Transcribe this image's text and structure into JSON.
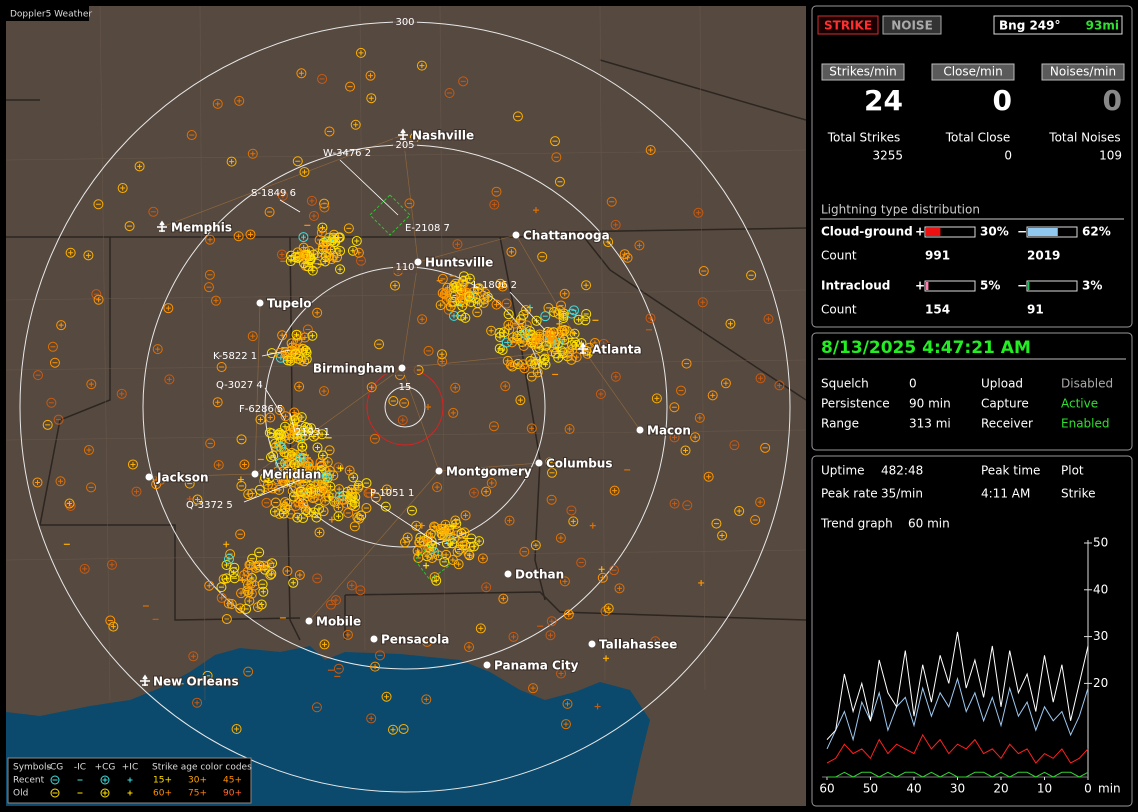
{
  "map": {
    "title": "Doppler5 Weather",
    "range_rings": [
      300,
      205,
      110,
      15
    ],
    "cities": [
      "Nashville",
      "Memphis",
      "Chattanooga",
      "Huntsville",
      "Tupelo",
      "Atlanta",
      "Birmingham",
      "Macon",
      "Jackson",
      "Meridian",
      "Montgomery",
      "Columbus",
      "Dothan",
      "Mobile",
      "Pensacola",
      "Tallahassee",
      "Panama City",
      "New Orleans"
    ],
    "storms": [
      "W-3476 2",
      "S-1849 6",
      "E-2108 7",
      "L-1806 2",
      "K-5822 1",
      "Q-3027 4",
      "F-6286 5",
      "2193 1",
      "P-1051 1",
      "Q-3372 5"
    ],
    "legend": {
      "title": "Symbols",
      "columns": [
        "-CG",
        "-IC",
        "+CG",
        "+IC"
      ],
      "age_title": "Strike age color codes",
      "rows": [
        {
          "label": "Recent",
          "ages": [
            "15+",
            "30+",
            "45+"
          ]
        },
        {
          "label": "Old",
          "ages": [
            "60+",
            "75+",
            "90+"
          ]
        }
      ]
    }
  },
  "panel": {
    "mode_buttons": [
      "STRIKE",
      "NOISE"
    ],
    "bearing": "Bng 249°",
    "distance": "93mi",
    "rates": [
      {
        "label": "Strikes/min",
        "value": 24
      },
      {
        "label": "Close/min",
        "value": 0
      },
      {
        "label": "Noises/min",
        "value": 0
      }
    ],
    "totals": [
      {
        "label": "Total Strikes",
        "value": 3255
      },
      {
        "label": "Total Close",
        "value": 0
      },
      {
        "label": "Total Noises",
        "value": 109
      }
    ],
    "distribution": {
      "title": "Lightning type distribution",
      "count_label": "Count",
      "rows": [
        {
          "label": "Cloud-ground",
          "plus": {
            "sign": "+",
            "percent": 30,
            "percent_label": "30%",
            "count": 991
          },
          "minus": {
            "sign": "−",
            "percent": 62,
            "percent_label": "62%",
            "count": 2019
          }
        },
        {
          "label": "Intracloud",
          "plus": {
            "sign": "+",
            "percent": 5,
            "percent_label": "5%",
            "count": 154
          },
          "minus": {
            "sign": "−",
            "percent": 3,
            "percent_label": "3%",
            "count": 91
          }
        }
      ]
    },
    "status": {
      "datetime": "8/13/2025 4:47:21 AM",
      "rows": [
        [
          "Squelch",
          "0",
          "Upload",
          "Disabled"
        ],
        [
          "Persistence",
          "90 min",
          "Capture",
          "Active"
        ],
        [
          "Range",
          "313 mi",
          "Receiver",
          "Enabled"
        ]
      ]
    },
    "stats": {
      "rows": [
        [
          "Uptime",
          "482:48",
          "Peak time",
          "Plot"
        ],
        [
          "Peak rate",
          "35/min",
          "4:11 AM",
          "Strike"
        ]
      ],
      "trend_label": "Trend graph",
      "trend_window": "60 min"
    }
  },
  "trend_chart": {
    "type": "line",
    "x": [
      60,
      58,
      56,
      54,
      52,
      50,
      48,
      46,
      44,
      42,
      40,
      38,
      36,
      34,
      32,
      30,
      28,
      26,
      24,
      22,
      20,
      18,
      16,
      14,
      12,
      10,
      8,
      6,
      4,
      2,
      0
    ],
    "series": [
      {
        "color": "#ffffff",
        "values": [
          8,
          10,
          22,
          14,
          20,
          12,
          25,
          18,
          15,
          27,
          13,
          24,
          16,
          26,
          20,
          31,
          19,
          25,
          17,
          28,
          15,
          27,
          18,
          22,
          14,
          26,
          16,
          24,
          12,
          20,
          28
        ]
      },
      {
        "color": "#9cc8f0",
        "values": [
          6,
          10,
          14,
          8,
          16,
          12,
          18,
          10,
          15,
          17,
          11,
          19,
          13,
          18,
          15,
          21,
          14,
          18,
          12,
          17,
          11,
          19,
          13,
          16,
          10,
          15,
          12,
          14,
          9,
          13,
          19
        ]
      },
      {
        "color": "#ff2020",
        "values": [
          3,
          4,
          7,
          5,
          6,
          4,
          8,
          5,
          7,
          6,
          5,
          9,
          6,
          8,
          5,
          7,
          6,
          8,
          5,
          6,
          4,
          7,
          5,
          6,
          3,
          5,
          4,
          6,
          3,
          4,
          6
        ]
      },
      {
        "color": "#30d030",
        "values": [
          0,
          0,
          1,
          0,
          1,
          1,
          0,
          1,
          0,
          1,
          1,
          0,
          1,
          0,
          1,
          0,
          0,
          1,
          1,
          0,
          1,
          0,
          1,
          1,
          0,
          1,
          0,
          1,
          1,
          0,
          1
        ]
      }
    ],
    "xlim": [
      60,
      0
    ],
    "ylim": [
      0,
      50
    ],
    "xticks": [
      60,
      50,
      40,
      30,
      20,
      10,
      0
    ],
    "yticks": [
      20,
      30,
      40,
      50
    ],
    "x_unit": "min"
  }
}
